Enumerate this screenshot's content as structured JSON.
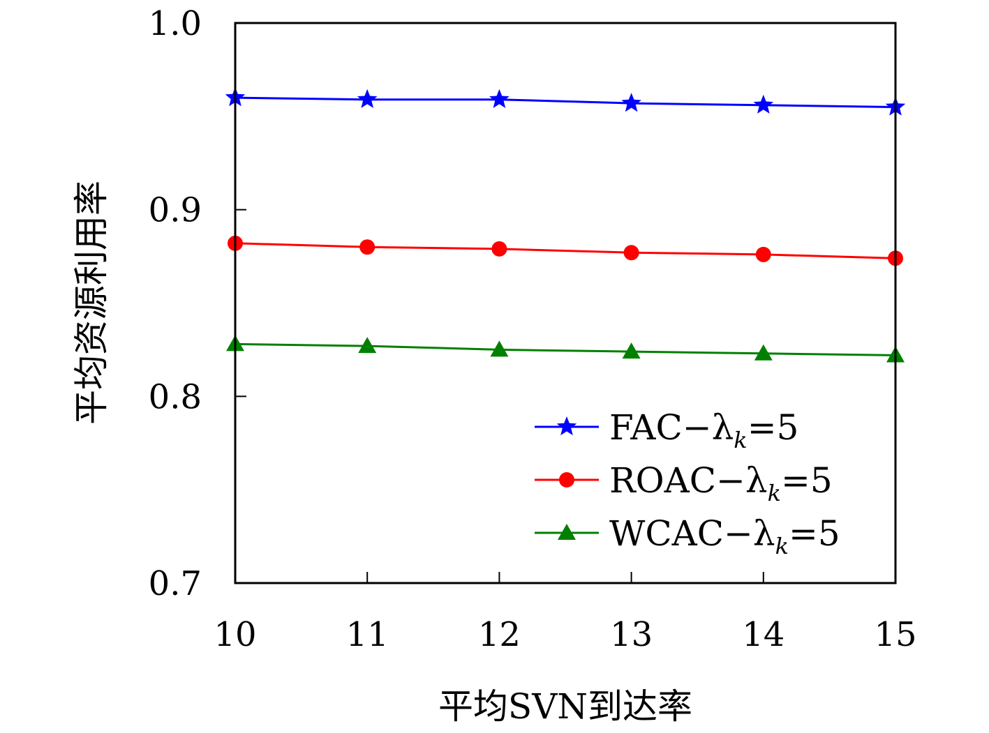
{
  "chart_data": {
    "type": "line",
    "xlabel": "平均SVN到达率",
    "ylabel": "平均资源利用率",
    "x": [
      10,
      11,
      12,
      13,
      14,
      15
    ],
    "xlim": [
      10,
      15
    ],
    "ylim": [
      0.7,
      1.0
    ],
    "xticks": [
      "10",
      "11",
      "12",
      "13",
      "14",
      "15"
    ],
    "yticks": [
      "0.7",
      "0.8",
      "0.9",
      "1.0"
    ],
    "grid": false,
    "legend_position": "lower-right",
    "series": [
      {
        "name": "FAC−λk=5",
        "name_main": "FAC−λ",
        "name_sub": "k",
        "name_tail": "=5",
        "color": "#0000ff",
        "marker": "star",
        "values": [
          0.96,
          0.959,
          0.959,
          0.957,
          0.956,
          0.955
        ]
      },
      {
        "name": "ROAC−λk=5",
        "name_main": "ROAC−λ",
        "name_sub": "k",
        "name_tail": "=5",
        "color": "#ff0000",
        "marker": "circle",
        "values": [
          0.882,
          0.88,
          0.879,
          0.877,
          0.876,
          0.874
        ]
      },
      {
        "name": "WCAC−λk=5",
        "name_main": "WCAC−λ",
        "name_sub": "k",
        "name_tail": "=5",
        "color": "#008000",
        "marker": "triangle",
        "values": [
          0.828,
          0.827,
          0.825,
          0.824,
          0.823,
          0.822
        ]
      }
    ]
  }
}
